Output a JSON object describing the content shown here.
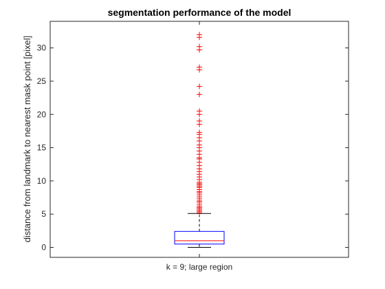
{
  "chart_data": {
    "type": "box",
    "title": "segmentation performance of the model",
    "xlabel": "",
    "ylabel": "distance from landmark to nearest mask point [pixel]",
    "categories": [
      "k = 9; large region"
    ],
    "ylim": [
      -1.5,
      34
    ],
    "yticks": [
      0,
      5,
      10,
      15,
      20,
      25,
      30
    ],
    "grid": false,
    "box": {
      "lower_whisker": 0.0,
      "q1": 0.5,
      "median": 1.0,
      "q3": 2.4,
      "upper_whisker": 5.1
    },
    "outliers": [
      5.2,
      5.4,
      5.6,
      5.8,
      6.0,
      6.2,
      6.5,
      6.8,
      7.0,
      7.3,
      7.6,
      7.9,
      8.2,
      8.4,
      8.7,
      9.0,
      9.2,
      9.4,
      9.6,
      9.8,
      10.2,
      10.6,
      11.0,
      11.4,
      11.8,
      12.3,
      12.8,
      13.3,
      13.5,
      14.0,
      14.5,
      15.0,
      15.4,
      16.0,
      16.5,
      17.0,
      17.3,
      18.5,
      19.0,
      20.0,
      20.5,
      23.0,
      24.2,
      26.7,
      27.1,
      29.7,
      30.2,
      31.6,
      32.0
    ],
    "colors": {
      "box": "#0000ff",
      "median": "#ff0000",
      "whisker": "#000000",
      "outlier": "#ff0000"
    }
  }
}
